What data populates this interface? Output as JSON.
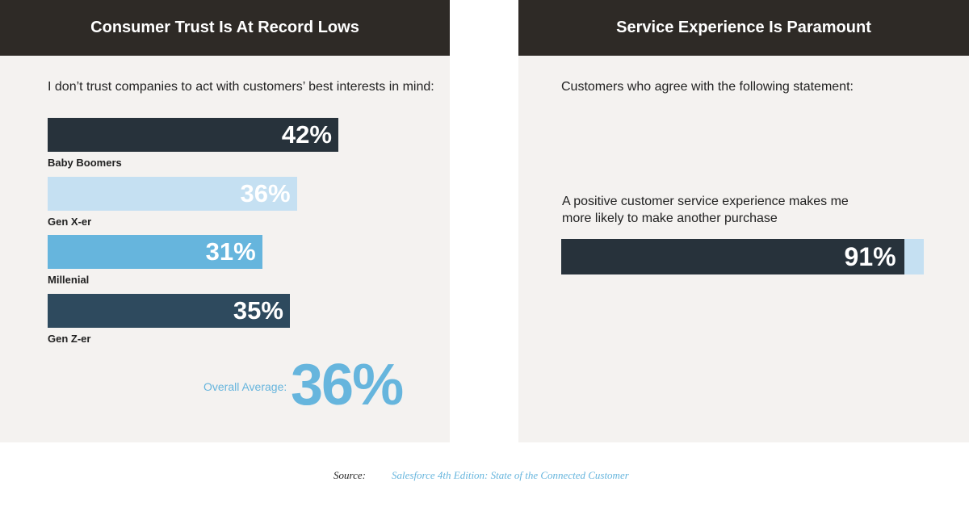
{
  "chart_data": [
    {
      "type": "bar",
      "title": "Consumer Trust Is At Record Lows",
      "subtitle": "I don’t trust companies to act with customers’ best interests in mind:",
      "categories": [
        "Baby Boomers",
        "Gen X-er",
        "Millenial",
        "Gen Z-er"
      ],
      "values": [
        42,
        36,
        31,
        35
      ],
      "value_labels": [
        "42%",
        "36%",
        "31%",
        "35%"
      ],
      "colors": [
        "#27323b",
        "#c5e0f2",
        "#66b5dd",
        "#2e4a5e"
      ],
      "average": {
        "label": "Overall Average:",
        "value": 36,
        "value_label": "36%"
      }
    },
    {
      "type": "bar",
      "title": "Service Experience Is Paramount",
      "subtitle": "Customers who agree with the following statement:",
      "categories": [
        "A positive customer service experience makes me more likely to make another purchase"
      ],
      "values": [
        91
      ],
      "value_labels": [
        "91%"
      ],
      "colors": [
        "#27323b"
      ],
      "track_color": "#c5e0f2",
      "xlim": [
        0,
        100
      ]
    }
  ],
  "source_label": "Source:",
  "source": "Salesforce 4th Edition: State of the Connected Customer"
}
